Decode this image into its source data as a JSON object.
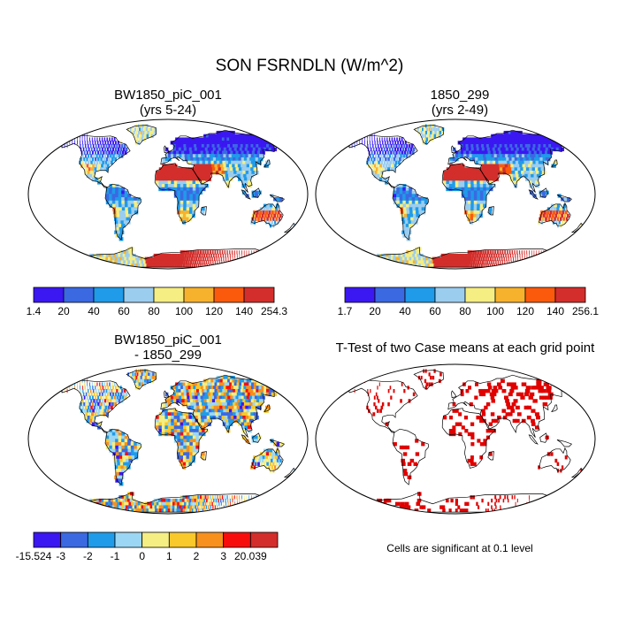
{
  "figure": {
    "title": "SON FSRNDLN (W/m^2)",
    "panels": {
      "top_left": {
        "title_line1": "BW1850_piC_001",
        "title_line2": "(yrs 5-24)"
      },
      "top_right": {
        "title_line1": "1850_299",
        "title_line2": "(yrs 2-49)"
      },
      "bottom_left": {
        "title_line1": "BW1850_piC_001",
        "title_line2": "- 1850_299"
      },
      "bottom_right": {
        "title": "T-Test of two Case means at each grid point",
        "note": "Cells are significant at 0.1 level"
      }
    }
  },
  "chart_data": [
    {
      "type": "heatmap",
      "title": "BW1850_piC_001 (yrs 5-24)",
      "colorbar": {
        "labels": [
          "1.4",
          "20",
          "40",
          "60",
          "80",
          "100",
          "120",
          "140",
          "254.3"
        ],
        "colors": [
          "#3b17f2",
          "#3b69e2",
          "#1f9be9",
          "#9bcdef",
          "#f5ee83",
          "#f7b22d",
          "#fb5a0c",
          "#d32e2b"
        ]
      }
    },
    {
      "type": "heatmap",
      "title": "1850_299 (yrs 2-49)",
      "colorbar": {
        "labels": [
          "1.7",
          "20",
          "40",
          "60",
          "80",
          "100",
          "120",
          "140",
          "256.1"
        ],
        "colors": [
          "#3b17f2",
          "#3b69e2",
          "#1f9be9",
          "#9bcdef",
          "#f5ee83",
          "#f7b22d",
          "#fb5a0c",
          "#d32e2b"
        ]
      }
    },
    {
      "type": "heatmap",
      "title": "BW1850_piC_001 - 1850_299",
      "colorbar": {
        "labels": [
          "-15.524",
          "-3",
          "-2",
          "-1",
          "0",
          "1",
          "2",
          "3",
          "20.039"
        ],
        "colors": [
          "#3b17f2",
          "#3b69e2",
          "#1f9be9",
          "#9bd7f4",
          "#f5ee83",
          "#f9c82a",
          "#f7901d",
          "#f80d0d",
          "#d32e2b"
        ]
      }
    },
    {
      "type": "heatmap",
      "title": "T-Test of two Case means at each grid point",
      "significant_color": "#e00000"
    }
  ]
}
